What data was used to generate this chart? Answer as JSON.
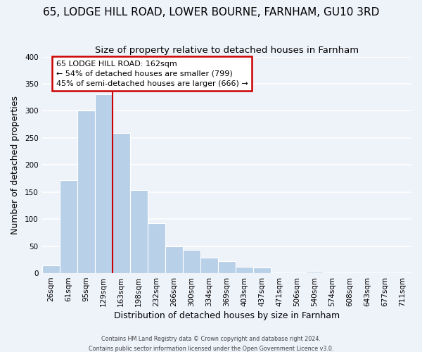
{
  "title": "65, LODGE HILL ROAD, LOWER BOURNE, FARNHAM, GU10 3RD",
  "subtitle": "Size of property relative to detached houses in Farnham",
  "xlabel": "Distribution of detached houses by size in Farnham",
  "ylabel": "Number of detached properties",
  "bar_labels": [
    "26sqm",
    "61sqm",
    "95sqm",
    "129sqm",
    "163sqm",
    "198sqm",
    "232sqm",
    "266sqm",
    "300sqm",
    "334sqm",
    "369sqm",
    "403sqm",
    "437sqm",
    "471sqm",
    "506sqm",
    "540sqm",
    "574sqm",
    "608sqm",
    "643sqm",
    "677sqm",
    "711sqm"
  ],
  "bar_values": [
    15,
    172,
    300,
    330,
    259,
    153,
    92,
    50,
    43,
    29,
    22,
    12,
    11,
    0,
    0,
    3,
    0,
    2,
    0,
    0,
    2
  ],
  "bar_color": "#b8d0e8",
  "highlight_line_index": 4,
  "highlight_line_color": "#cc0000",
  "annotation_line1": "65 LODGE HILL ROAD: 162sqm",
  "annotation_line2": "← 54% of detached houses are smaller (799)",
  "annotation_line3": "45% of semi-detached houses are larger (666) →",
  "annotation_box_color": "white",
  "annotation_box_edge": "#cc0000",
  "ylim": [
    0,
    400
  ],
  "yticks": [
    0,
    50,
    100,
    150,
    200,
    250,
    300,
    350,
    400
  ],
  "footer1": "Contains HM Land Registry data © Crown copyright and database right 2024.",
  "footer2": "Contains public sector information licensed under the Open Government Licence v3.0.",
  "background_color": "#eef2f9",
  "grid_color": "white",
  "title_fontsize": 11,
  "axis_label_fontsize": 9,
  "tick_fontsize": 7.5
}
